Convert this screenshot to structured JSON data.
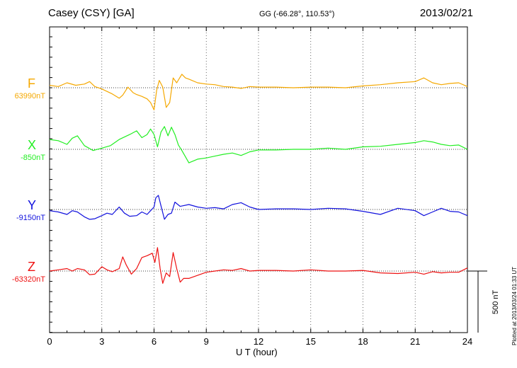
{
  "header": {
    "station": "Casey (CSY)  [GA]",
    "coords": "GG (-66.28°, 110.53°)",
    "date": "2013/02/21"
  },
  "plotted_note": "Plotted at 2013/03/24 01:33 UT",
  "scale_label": "500 nT",
  "chart_data": {
    "type": "line",
    "title": "Casey (CSY)  [GA]",
    "xlabel": "U T (hour)",
    "ylabel": "",
    "xlim": [
      0,
      24
    ],
    "xticks": [
      0,
      3,
      6,
      9,
      12,
      15,
      18,
      21,
      24
    ],
    "grid": true,
    "scale_bar_nT": 500,
    "series": [
      {
        "name": "F",
        "baseline_label": "63990nT",
        "color": "#f5a800",
        "x": [
          0,
          0.5,
          1,
          1.5,
          2,
          2.3,
          2.6,
          3,
          3.3,
          3.6,
          4,
          4.2,
          4.5,
          4.8,
          5,
          5.3,
          5.6,
          5.8,
          6,
          6.15,
          6.3,
          6.5,
          6.7,
          6.9,
          7.1,
          7.3,
          7.6,
          7.8,
          8,
          8.5,
          9,
          9.5,
          10,
          10.5,
          11,
          11.5,
          12,
          13,
          14,
          15,
          16,
          17,
          18,
          19,
          20,
          21,
          21.5,
          22,
          22.5,
          23,
          23.5,
          24
        ],
        "y": [
          20,
          10,
          40,
          20,
          30,
          50,
          10,
          -10,
          -30,
          -50,
          -85,
          -60,
          5,
          -40,
          -55,
          -70,
          -90,
          -120,
          -180,
          -20,
          60,
          5,
          -160,
          -120,
          80,
          40,
          110,
          80,
          70,
          40,
          30,
          25,
          10,
          5,
          -5,
          10,
          5,
          5,
          0,
          5,
          5,
          0,
          15,
          25,
          40,
          50,
          80,
          40,
          25,
          35,
          40,
          10
        ]
      },
      {
        "name": "X",
        "baseline_label": "-850nT",
        "color": "#22ee22",
        "x": [
          0,
          0.5,
          1,
          1.3,
          1.6,
          2,
          2.5,
          3,
          3.5,
          4,
          4.3,
          4.6,
          5,
          5.3,
          5.6,
          5.8,
          6,
          6.2,
          6.4,
          6.6,
          6.8,
          7,
          7.2,
          7.4,
          7.6,
          7.8,
          8,
          8.5,
          9,
          9.5,
          10,
          10.5,
          11,
          11.5,
          12,
          13,
          14,
          15,
          16,
          17,
          18,
          19,
          20,
          21,
          21.5,
          22,
          22.5,
          23,
          23.5,
          24
        ],
        "y": [
          80,
          70,
          40,
          90,
          110,
          30,
          -10,
          10,
          30,
          80,
          100,
          120,
          150,
          95,
          120,
          165,
          120,
          20,
          140,
          185,
          110,
          180,
          120,
          35,
          -10,
          -60,
          -110,
          -80,
          -70,
          -55,
          -40,
          -30,
          -50,
          -20,
          -5,
          -5,
          0,
          0,
          10,
          0,
          20,
          25,
          40,
          55,
          70,
          60,
          40,
          30,
          35,
          0
        ]
      },
      {
        "name": "Y",
        "baseline_label": "-9150nT",
        "color": "#1111dd",
        "x": [
          0,
          0.5,
          1,
          1.3,
          1.6,
          2,
          2.3,
          2.6,
          3,
          3.3,
          3.6,
          4,
          4.3,
          4.6,
          5,
          5.3,
          5.6,
          5.8,
          6,
          6.1,
          6.25,
          6.4,
          6.6,
          6.8,
          7,
          7.2,
          7.5,
          8,
          8.5,
          9,
          9.5,
          10,
          10.5,
          11,
          11.5,
          12,
          13,
          14,
          15,
          16,
          17,
          18,
          19,
          20,
          21,
          21.5,
          22,
          22.5,
          23,
          23.5,
          24
        ],
        "y": [
          -10,
          -20,
          -40,
          -10,
          -20,
          -60,
          -80,
          -75,
          -50,
          -30,
          -40,
          20,
          -30,
          -55,
          -50,
          -20,
          -40,
          -10,
          20,
          95,
          115,
          30,
          -80,
          -40,
          -30,
          60,
          25,
          40,
          20,
          10,
          15,
          5,
          40,
          55,
          20,
          0,
          5,
          5,
          0,
          10,
          5,
          -15,
          -40,
          10,
          -10,
          -50,
          -20,
          10,
          -15,
          -20,
          -50
        ]
      },
      {
        "name": "Z",
        "baseline_label": "-63320nT",
        "color": "#ee1111",
        "x": [
          0,
          0.5,
          1,
          1.3,
          1.6,
          2,
          2.3,
          2.6,
          3,
          3.3,
          3.6,
          4,
          4.2,
          4.4,
          4.7,
          5,
          5.3,
          5.6,
          5.9,
          6.05,
          6.2,
          6.35,
          6.5,
          6.7,
          6.9,
          7.1,
          7.3,
          7.5,
          7.7,
          8,
          8.5,
          9,
          9.5,
          10,
          10.5,
          11,
          11.5,
          12,
          13,
          14,
          15,
          16,
          17,
          18,
          19,
          20,
          21,
          21.5,
          22,
          22.5,
          23,
          23.5,
          24
        ],
        "y": [
          0,
          10,
          20,
          0,
          20,
          10,
          -30,
          -25,
          35,
          10,
          -5,
          20,
          115,
          50,
          -25,
          20,
          110,
          125,
          145,
          70,
          190,
          20,
          -100,
          -15,
          -45,
          150,
          20,
          -90,
          -60,
          -60,
          -35,
          -10,
          0,
          10,
          5,
          20,
          0,
          5,
          5,
          0,
          10,
          0,
          0,
          5,
          -15,
          -20,
          -10,
          -25,
          -5,
          -15,
          -10,
          -10,
          25
        ]
      }
    ]
  }
}
